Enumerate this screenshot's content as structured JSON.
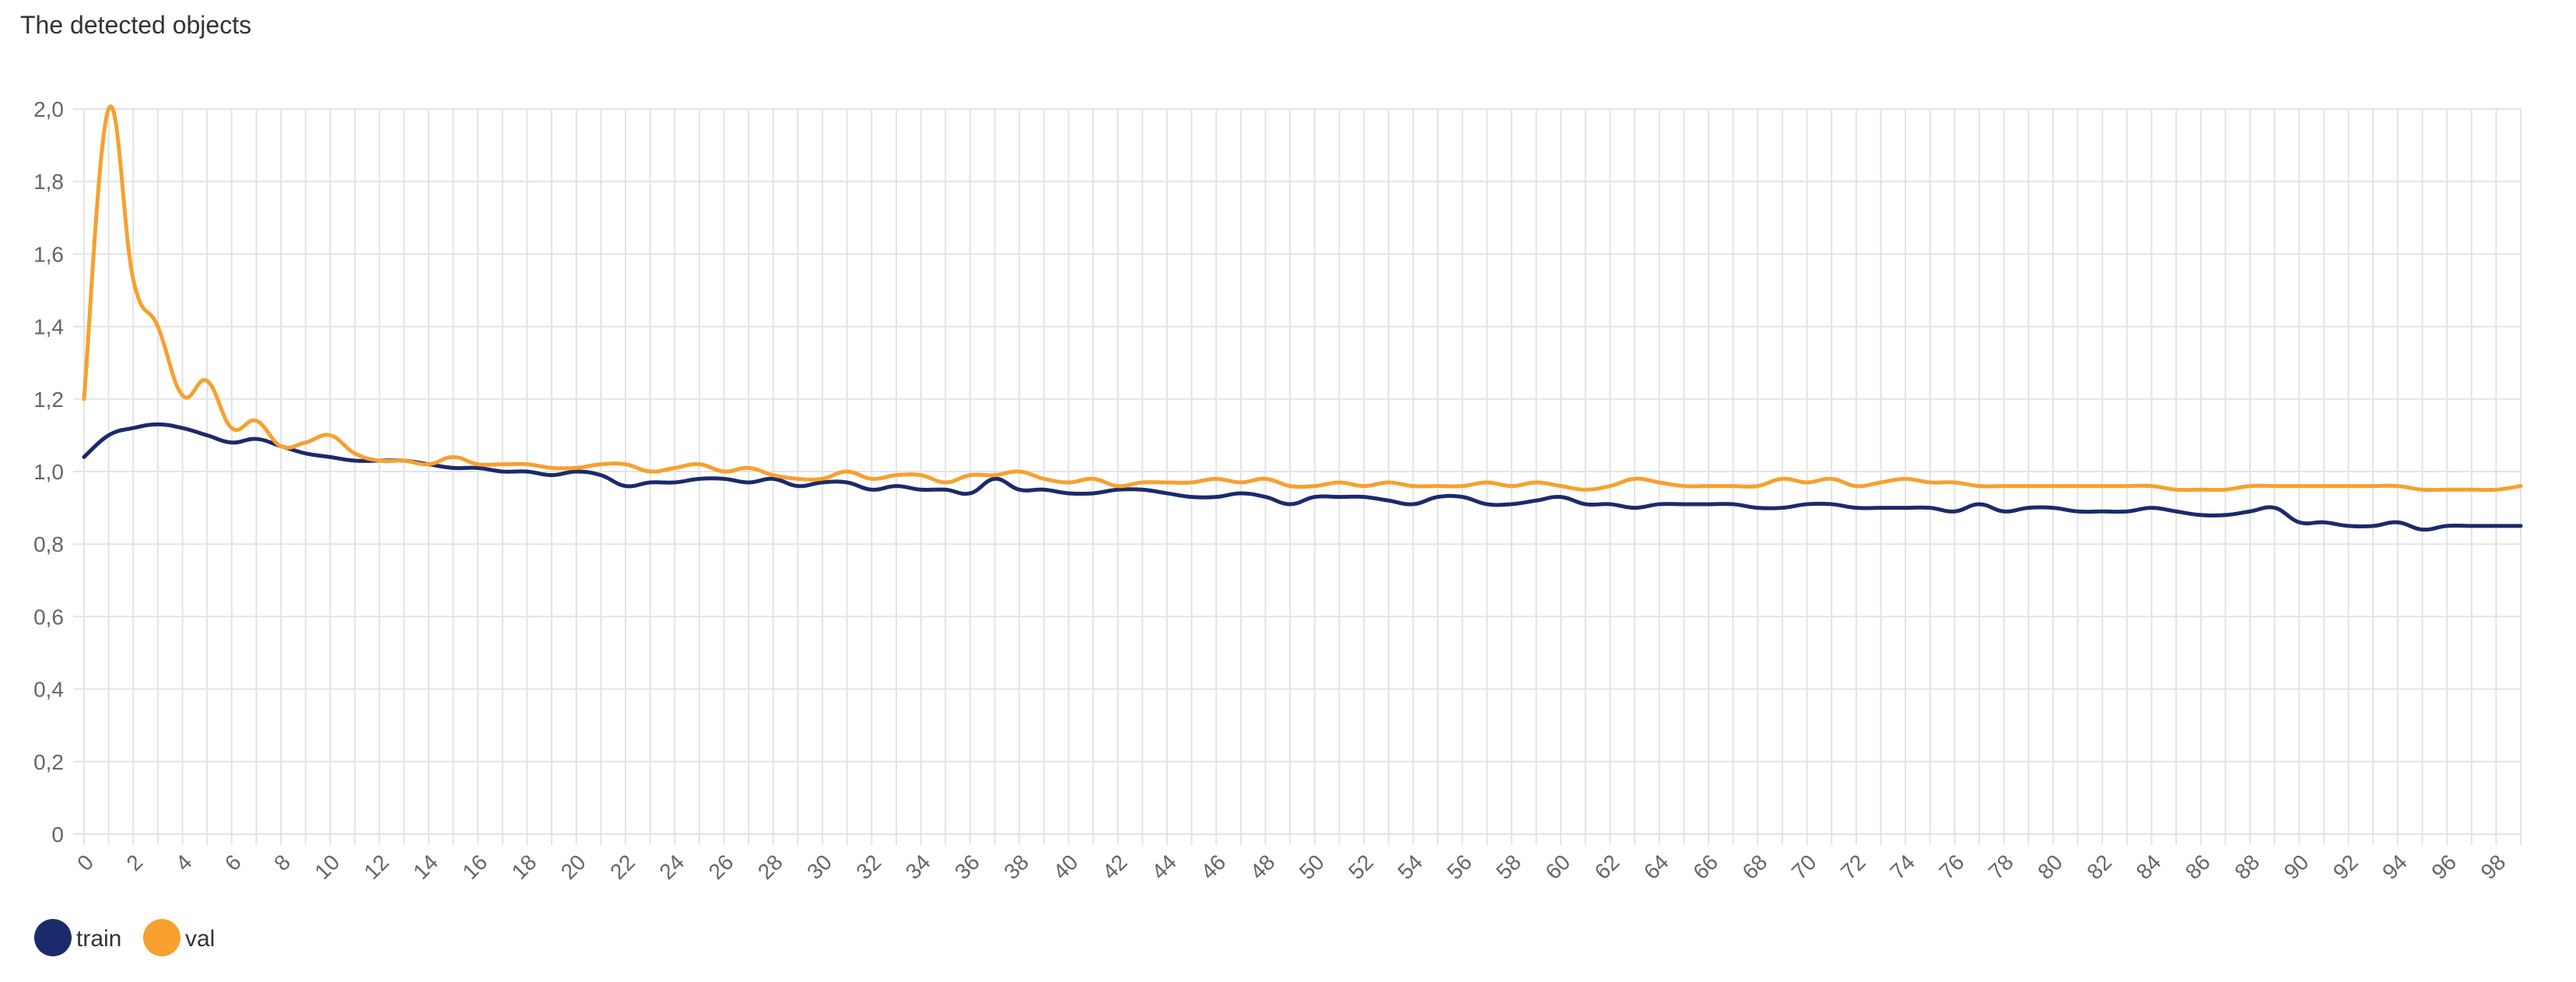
{
  "chart_data": {
    "type": "line",
    "title": "The detected objects",
    "xlabel": "",
    "ylabel": "",
    "x": [
      0,
      1,
      2,
      3,
      4,
      5,
      6,
      7,
      8,
      9,
      10,
      11,
      12,
      13,
      14,
      15,
      16,
      17,
      18,
      19,
      20,
      21,
      22,
      23,
      24,
      25,
      26,
      27,
      28,
      29,
      30,
      31,
      32,
      33,
      34,
      35,
      36,
      37,
      38,
      39,
      40,
      41,
      42,
      43,
      44,
      45,
      46,
      47,
      48,
      49,
      50,
      51,
      52,
      53,
      54,
      55,
      56,
      57,
      58,
      59,
      60,
      61,
      62,
      63,
      64,
      65,
      66,
      67,
      68,
      69,
      70,
      71,
      72,
      73,
      74,
      75,
      76,
      77,
      78,
      79,
      80,
      81,
      82,
      83,
      84,
      85,
      86,
      87,
      88,
      89,
      90,
      91,
      92,
      93,
      94,
      95,
      96,
      97,
      98,
      99
    ],
    "x_tick_labels": [
      "0",
      "2",
      "4",
      "6",
      "8",
      "10",
      "12",
      "14",
      "16",
      "18",
      "20",
      "22",
      "24",
      "26",
      "28",
      "30",
      "32",
      "34",
      "36",
      "38",
      "40",
      "42",
      "44",
      "46",
      "48",
      "50",
      "52",
      "54",
      "56",
      "58",
      "60",
      "62",
      "64",
      "66",
      "68",
      "70",
      "72",
      "74",
      "76",
      "78",
      "80",
      "82",
      "84",
      "86",
      "88",
      "90",
      "92",
      "94",
      "96",
      "98"
    ],
    "y_tick_labels": [
      "0",
      "0,2",
      "0,4",
      "0,6",
      "0,8",
      "1,0",
      "1,2",
      "1,4",
      "1,6",
      "1,8",
      "2,0"
    ],
    "ylim": [
      0,
      2.0
    ],
    "grid": true,
    "legend_position": "bottom-left",
    "series": [
      {
        "name": "train",
        "color": "#1b2a6b",
        "values": [
          1.04,
          1.1,
          1.12,
          1.13,
          1.12,
          1.1,
          1.08,
          1.09,
          1.07,
          1.05,
          1.04,
          1.03,
          1.03,
          1.03,
          1.02,
          1.01,
          1.01,
          1.0,
          1.0,
          0.99,
          1.0,
          0.99,
          0.96,
          0.97,
          0.97,
          0.98,
          0.98,
          0.97,
          0.98,
          0.96,
          0.97,
          0.97,
          0.95,
          0.96,
          0.95,
          0.95,
          0.94,
          0.98,
          0.95,
          0.95,
          0.94,
          0.94,
          0.95,
          0.95,
          0.94,
          0.93,
          0.93,
          0.94,
          0.93,
          0.91,
          0.93,
          0.93,
          0.93,
          0.92,
          0.91,
          0.93,
          0.93,
          0.91,
          0.91,
          0.92,
          0.93,
          0.91,
          0.91,
          0.9,
          0.91,
          0.91,
          0.91,
          0.91,
          0.9,
          0.9,
          0.91,
          0.91,
          0.9,
          0.9,
          0.9,
          0.9,
          0.89,
          0.91,
          0.89,
          0.9,
          0.9,
          0.89,
          0.89,
          0.89,
          0.9,
          0.89,
          0.88,
          0.88,
          0.89,
          0.9,
          0.86,
          0.86,
          0.85,
          0.85,
          0.86,
          0.84,
          0.85,
          0.85,
          0.85,
          0.85
        ]
      },
      {
        "name": "val",
        "color": "#f7a030",
        "values": [
          1.2,
          2.0,
          1.53,
          1.4,
          1.21,
          1.25,
          1.12,
          1.14,
          1.07,
          1.08,
          1.1,
          1.05,
          1.03,
          1.03,
          1.02,
          1.04,
          1.02,
          1.02,
          1.02,
          1.01,
          1.01,
          1.02,
          1.02,
          1.0,
          1.01,
          1.02,
          1.0,
          1.01,
          0.99,
          0.98,
          0.98,
          1.0,
          0.98,
          0.99,
          0.99,
          0.97,
          0.99,
          0.99,
          1.0,
          0.98,
          0.97,
          0.98,
          0.96,
          0.97,
          0.97,
          0.97,
          0.98,
          0.97,
          0.98,
          0.96,
          0.96,
          0.97,
          0.96,
          0.97,
          0.96,
          0.96,
          0.96,
          0.97,
          0.96,
          0.97,
          0.96,
          0.95,
          0.96,
          0.98,
          0.97,
          0.96,
          0.96,
          0.96,
          0.96,
          0.98,
          0.97,
          0.98,
          0.96,
          0.97,
          0.98,
          0.97,
          0.97,
          0.96,
          0.96,
          0.96,
          0.96,
          0.96,
          0.96,
          0.96,
          0.96,
          0.95,
          0.95,
          0.95,
          0.96,
          0.96,
          0.96,
          0.96,
          0.96,
          0.96,
          0.96,
          0.95,
          0.95,
          0.95,
          0.95,
          0.96
        ]
      }
    ]
  }
}
